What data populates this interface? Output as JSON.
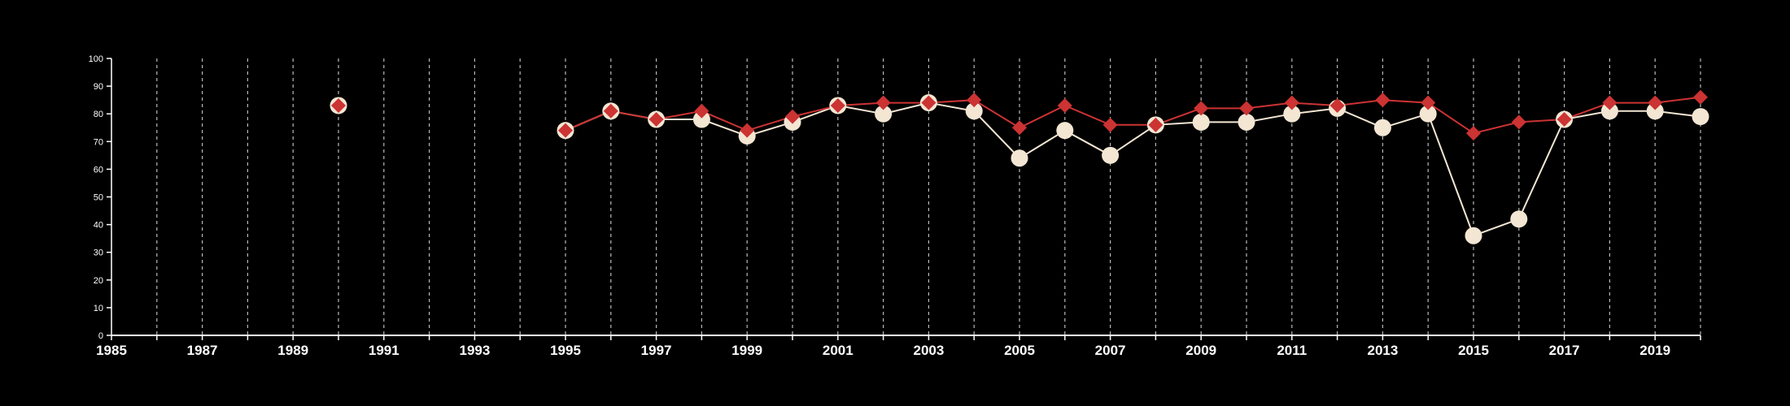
{
  "chart_data": {
    "type": "line",
    "title": "",
    "xlabel": "",
    "ylabel": "",
    "xlim": [
      1985,
      2020
    ],
    "ylim": [
      0,
      100
    ],
    "x_ticks": [
      1985,
      1987,
      1989,
      1991,
      1993,
      1995,
      1997,
      1999,
      2001,
      2003,
      2005,
      2007,
      2009,
      2011,
      2013,
      2015,
      2017,
      2019
    ],
    "y_ticks": [
      0,
      10,
      20,
      30,
      40,
      50,
      60,
      70,
      80,
      90,
      100
    ],
    "vertical_grid": "dashed at every year",
    "colors": {
      "background": "#000000",
      "axis": "#ffffff",
      "grid": "#b8b8b8",
      "series_1": "#f3e6d3",
      "series_2": "#cc3333"
    },
    "series": [
      {
        "marker": "circle",
        "points": [
          [
            1990,
            83
          ],
          [
            1995,
            74
          ],
          [
            1996,
            81
          ],
          [
            1997,
            78
          ],
          [
            1998,
            78
          ],
          [
            1999,
            72
          ],
          [
            2000,
            77
          ],
          [
            2001,
            83
          ],
          [
            2002,
            80
          ],
          [
            2003,
            84
          ],
          [
            2004,
            81
          ],
          [
            2005,
            64
          ],
          [
            2006,
            74
          ],
          [
            2007,
            65
          ],
          [
            2008,
            76
          ],
          [
            2009,
            77
          ],
          [
            2010,
            77
          ],
          [
            2011,
            80
          ],
          [
            2012,
            82
          ],
          [
            2013,
            75
          ],
          [
            2014,
            80
          ],
          [
            2015,
            36
          ],
          [
            2016,
            42
          ],
          [
            2017,
            78
          ],
          [
            2018,
            81
          ],
          [
            2019,
            81
          ],
          [
            2020,
            79
          ]
        ]
      },
      {
        "marker": "diamond",
        "points": [
          [
            1990,
            83
          ],
          [
            1995,
            74
          ],
          [
            1996,
            81
          ],
          [
            1997,
            78
          ],
          [
            1998,
            81
          ],
          [
            1999,
            74
          ],
          [
            2000,
            79
          ],
          [
            2001,
            83
          ],
          [
            2002,
            84
          ],
          [
            2003,
            84
          ],
          [
            2004,
            85
          ],
          [
            2005,
            75
          ],
          [
            2006,
            83
          ],
          [
            2007,
            76
          ],
          [
            2008,
            76
          ],
          [
            2009,
            82
          ],
          [
            2010,
            82
          ],
          [
            2011,
            84
          ],
          [
            2012,
            83
          ],
          [
            2013,
            85
          ],
          [
            2014,
            84
          ],
          [
            2015,
            73
          ],
          [
            2016,
            77
          ],
          [
            2017,
            78
          ],
          [
            2018,
            84
          ],
          [
            2019,
            84
          ],
          [
            2020,
            86
          ]
        ]
      }
    ]
  }
}
